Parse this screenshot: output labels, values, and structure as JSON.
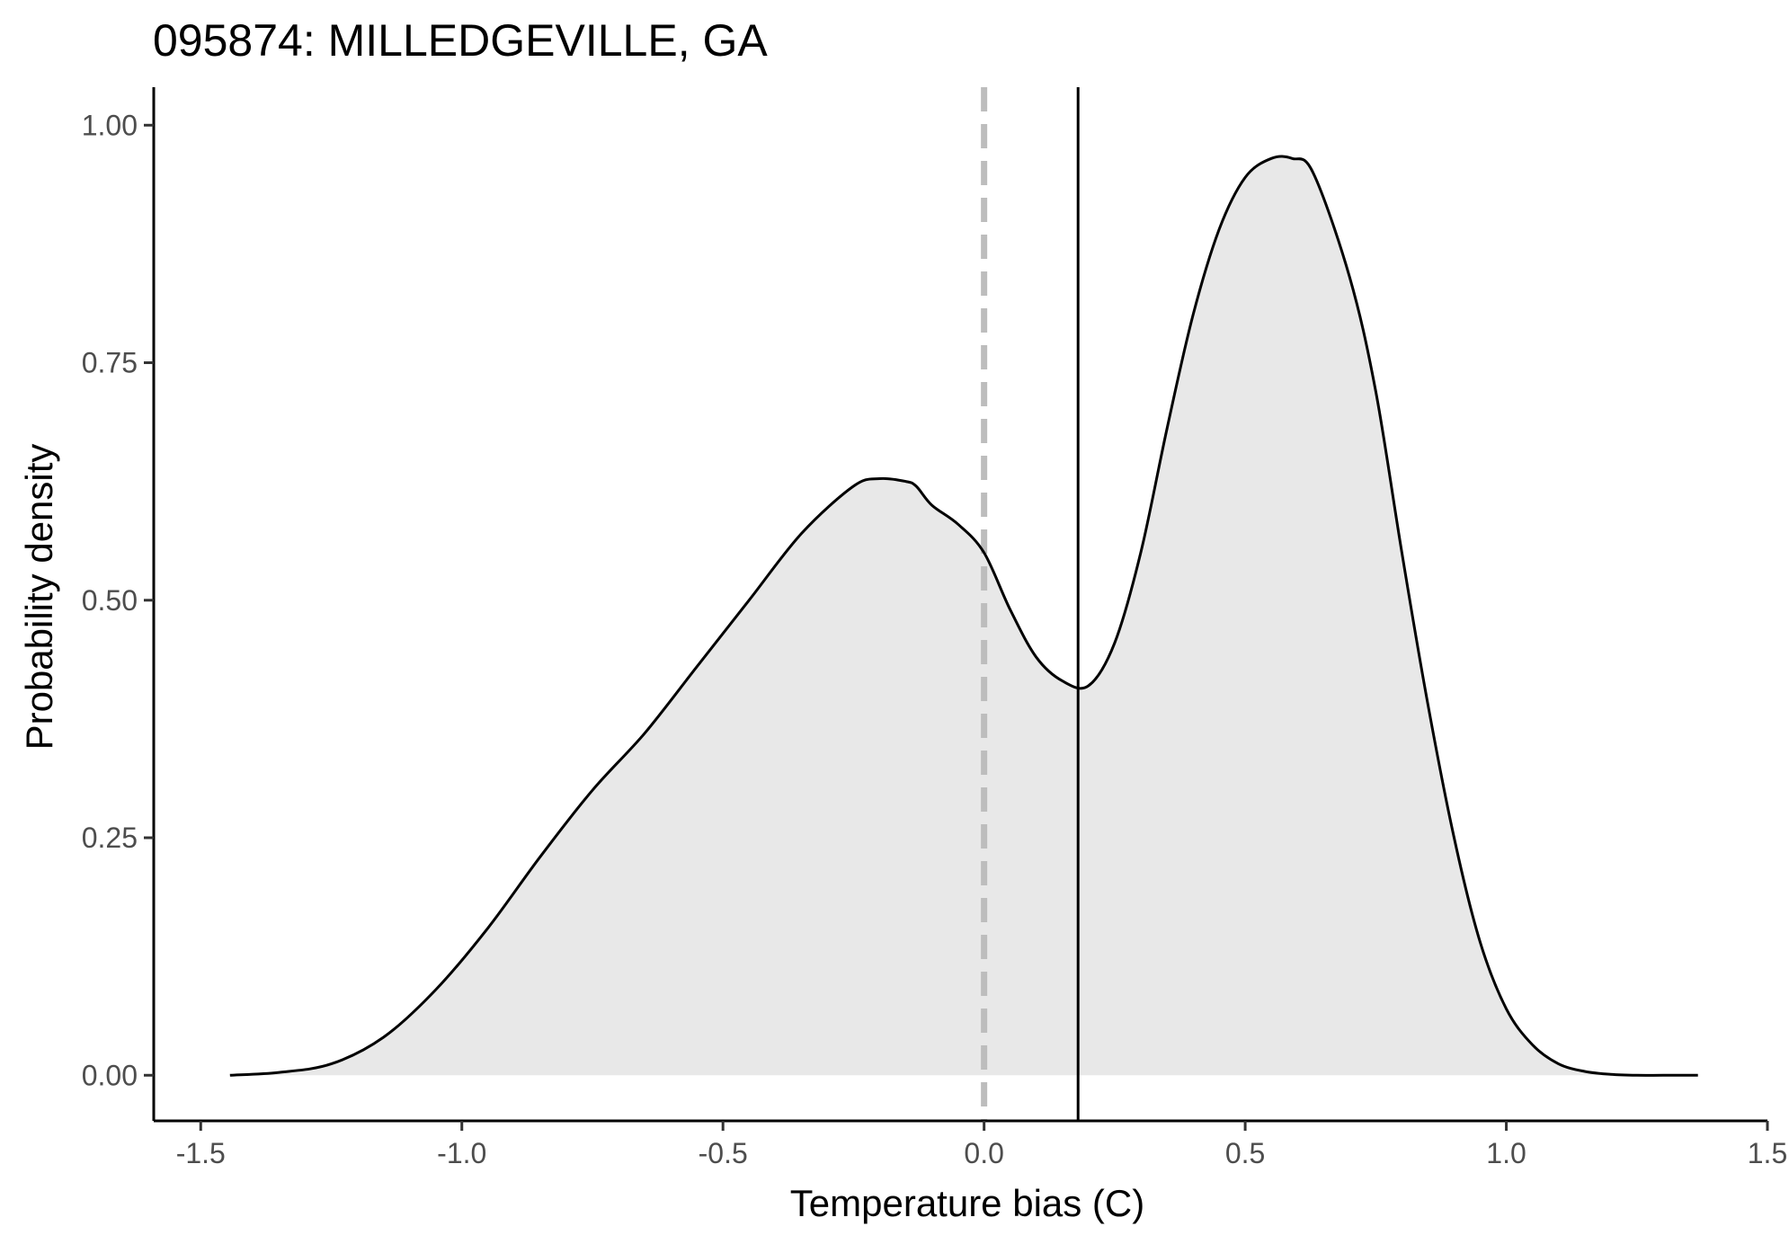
{
  "chart_data": {
    "type": "area",
    "title": "095874: MILLEDGEVILLE, GA",
    "xlabel": "Temperature bias (C)",
    "ylabel": "Probability density",
    "xlim": [
      -1.59,
      1.5
    ],
    "ylim": [
      -0.048,
      1.04
    ],
    "x_ticks": [
      -1.5,
      -1.0,
      -0.5,
      0.0,
      0.5,
      1.0,
      1.5
    ],
    "x_tick_labels": [
      "-1.5",
      "-1.0",
      "-0.5",
      "0.0",
      "0.5",
      "1.0",
      "1.5"
    ],
    "y_ticks": [
      0.0,
      0.25,
      0.5,
      0.75,
      1.0
    ],
    "y_tick_labels": [
      "0.00",
      "0.25",
      "0.50",
      "0.75",
      "1.00"
    ],
    "grid": false,
    "legend": "none",
    "series": [
      {
        "x": [
          -1.444,
          -1.35,
          -1.25,
          -1.15,
          -1.05,
          -0.95,
          -0.85,
          -0.75,
          -0.65,
          -0.55,
          -0.45,
          -0.35,
          -0.25,
          -0.2,
          -0.15,
          -0.13,
          -0.1,
          -0.05,
          0.0,
          0.05,
          0.1,
          0.15,
          0.2,
          0.25,
          0.3,
          0.35,
          0.4,
          0.45,
          0.5,
          0.55,
          0.59,
          0.63,
          0.7,
          0.75,
          0.8,
          0.85,
          0.9,
          0.95,
          1.0,
          1.05,
          1.1,
          1.15,
          1.2,
          1.25,
          1.3,
          1.367
        ],
        "y": [
          0.0,
          0.003,
          0.012,
          0.04,
          0.09,
          0.155,
          0.23,
          0.3,
          0.36,
          0.43,
          0.5,
          0.57,
          0.62,
          0.628,
          0.625,
          0.62,
          0.6,
          0.58,
          0.55,
          0.49,
          0.44,
          0.415,
          0.41,
          0.455,
          0.55,
          0.68,
          0.8,
          0.89,
          0.945,
          0.965,
          0.965,
          0.95,
          0.84,
          0.72,
          0.55,
          0.39,
          0.25,
          0.14,
          0.07,
          0.032,
          0.012,
          0.004,
          0.001,
          0.0,
          0.0,
          0.0
        ],
        "fill": "#e8e8e8",
        "stroke": "#000000"
      }
    ],
    "reference_lines": [
      {
        "x": 0.0,
        "style": "dashed",
        "color": "#bdbdbd"
      },
      {
        "x": 0.18,
        "style": "solid",
        "color": "#000000"
      }
    ]
  }
}
